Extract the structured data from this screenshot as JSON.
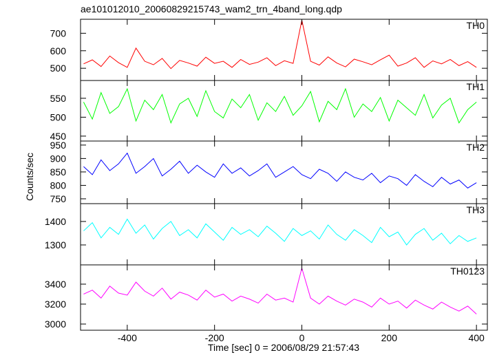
{
  "chart_data": [
    {
      "type": "line",
      "title": "ae101012010_20060829215743_wam2_trn_4band_long.qdp",
      "name": "TH0",
      "color": "#ff0000",
      "x": [
        -500,
        -480,
        -460,
        -440,
        -420,
        -400,
        -380,
        -360,
        -340,
        -320,
        -300,
        -280,
        -260,
        -240,
        -220,
        -200,
        -180,
        -160,
        -140,
        -120,
        -100,
        -80,
        -60,
        -40,
        -20,
        0,
        20,
        40,
        60,
        80,
        100,
        120,
        140,
        160,
        180,
        200,
        220,
        240,
        260,
        280,
        300,
        320,
        340,
        360,
        380,
        400
      ],
      "values": [
        525,
        548,
        510,
        570,
        532,
        505,
        615,
        540,
        520,
        556,
        498,
        545,
        530,
        512,
        563,
        528,
        540,
        505,
        550,
        522,
        535,
        560,
        515,
        543,
        528,
        775,
        540,
        518,
        565,
        530,
        508,
        552,
        537,
        520,
        548,
        575,
        512,
        530,
        560,
        505,
        542,
        525,
        550,
        515,
        538,
        505
      ],
      "xlim": [
        -507,
        425
      ],
      "xticks": [
        -400,
        -200,
        0,
        200,
        400
      ],
      "ylim": [
        430,
        780
      ],
      "yticks": [
        500,
        600,
        700
      ]
    },
    {
      "type": "line",
      "name": "TH1",
      "color": "#00ff00",
      "x": [
        -500,
        -480,
        -460,
        -440,
        -420,
        -400,
        -380,
        -360,
        -340,
        -320,
        -300,
        -280,
        -260,
        -240,
        -220,
        -200,
        -180,
        -160,
        -140,
        -120,
        -100,
        -80,
        -60,
        -40,
        -20,
        0,
        20,
        40,
        60,
        80,
        100,
        120,
        140,
        160,
        180,
        200,
        220,
        240,
        260,
        280,
        300,
        320,
        340,
        360,
        380,
        400
      ],
      "values": [
        540,
        495,
        565,
        510,
        528,
        575,
        490,
        545,
        520,
        560,
        485,
        535,
        550,
        502,
        570,
        515,
        498,
        548,
        525,
        560,
        492,
        538,
        515,
        555,
        505,
        530,
        568,
        488,
        542,
        520,
        575,
        500,
        535,
        515,
        552,
        490,
        545,
        525,
        505,
        560,
        498,
        532,
        550,
        485,
        520,
        540
      ],
      "xlim": [
        -507,
        425
      ],
      "xticks": [
        -400,
        -200,
        0,
        200,
        400
      ],
      "ylim": [
        437,
        597
      ],
      "yticks": [
        450,
        500,
        550
      ]
    },
    {
      "type": "line",
      "name": "TH2",
      "color": "#0000ff",
      "ylabel": "Counts/sec",
      "x": [
        -500,
        -480,
        -460,
        -440,
        -420,
        -400,
        -380,
        -360,
        -340,
        -320,
        -300,
        -280,
        -260,
        -240,
        -220,
        -200,
        -180,
        -160,
        -140,
        -120,
        -100,
        -80,
        -60,
        -40,
        -20,
        0,
        20,
        40,
        60,
        80,
        100,
        120,
        140,
        160,
        180,
        200,
        220,
        240,
        260,
        280,
        300,
        320,
        340,
        360,
        380,
        400
      ],
      "values": [
        870,
        840,
        895,
        855,
        880,
        920,
        845,
        870,
        900,
        835,
        860,
        890,
        845,
        875,
        850,
        830,
        880,
        845,
        865,
        835,
        855,
        880,
        830,
        850,
        870,
        840,
        825,
        860,
        845,
        815,
        850,
        830,
        820,
        845,
        810,
        835,
        825,
        800,
        840,
        815,
        795,
        830,
        805,
        820,
        790,
        810
      ],
      "xlim": [
        -507,
        425
      ],
      "xticks": [
        -400,
        -200,
        0,
        200,
        400
      ],
      "ylim": [
        732,
        965
      ],
      "yticks": [
        750,
        800,
        850,
        900,
        950
      ]
    },
    {
      "type": "line",
      "name": "TH3",
      "color": "#00ffff",
      "x": [
        -500,
        -480,
        -460,
        -440,
        -420,
        -400,
        -380,
        -360,
        -340,
        -320,
        -300,
        -280,
        -260,
        -240,
        -220,
        -200,
        -180,
        -160,
        -140,
        -120,
        -100,
        -80,
        -60,
        -40,
        -20,
        0,
        20,
        40,
        60,
        80,
        100,
        120,
        140,
        160,
        180,
        200,
        220,
        240,
        260,
        280,
        300,
        320,
        340,
        360,
        380,
        400
      ],
      "values": [
        1360,
        1395,
        1330,
        1375,
        1345,
        1410,
        1350,
        1385,
        1325,
        1370,
        1400,
        1340,
        1365,
        1330,
        1390,
        1355,
        1320,
        1375,
        1345,
        1365,
        1335,
        1380,
        1350,
        1315,
        1370,
        1340,
        1360,
        1325,
        1385,
        1345,
        1320,
        1365,
        1340,
        1310,
        1375,
        1335,
        1355,
        1300,
        1345,
        1370,
        1320,
        1350,
        1305,
        1340,
        1315,
        1330
      ],
      "xlim": [
        -507,
        425
      ],
      "xticks": [
        -400,
        -200,
        0,
        200,
        400
      ],
      "ylim": [
        1215,
        1476
      ],
      "yticks": [
        1300,
        1400
      ]
    },
    {
      "type": "line",
      "name": "TH0123",
      "color": "#ff00ff",
      "xlabel": "Time [sec] 0 = 2006/08/29 21:57:43",
      "x": [
        -500,
        -480,
        -460,
        -440,
        -420,
        -400,
        -380,
        -360,
        -340,
        -320,
        -300,
        -280,
        -260,
        -240,
        -220,
        -200,
        -180,
        -160,
        -140,
        -120,
        -100,
        -80,
        -60,
        -40,
        -20,
        0,
        20,
        40,
        60,
        80,
        100,
        120,
        140,
        160,
        180,
        200,
        220,
        240,
        260,
        280,
        300,
        320,
        340,
        360,
        380,
        400
      ],
      "values": [
        3300,
        3340,
        3260,
        3380,
        3310,
        3290,
        3420,
        3330,
        3280,
        3360,
        3250,
        3320,
        3290,
        3240,
        3340,
        3270,
        3300,
        3230,
        3280,
        3250,
        3210,
        3300,
        3240,
        3260,
        3220,
        3560,
        3260,
        3200,
        3280,
        3230,
        3190,
        3250,
        3220,
        3170,
        3260,
        3200,
        3230,
        3160,
        3240,
        3190,
        3150,
        3220,
        3170,
        3130,
        3180,
        3100
      ],
      "xlim": [
        -507,
        425
      ],
      "xticks": [
        -400,
        -200,
        0,
        200,
        400
      ],
      "ylim": [
        2938,
        3593
      ],
      "yticks": [
        3000,
        3200,
        3400
      ]
    }
  ]
}
